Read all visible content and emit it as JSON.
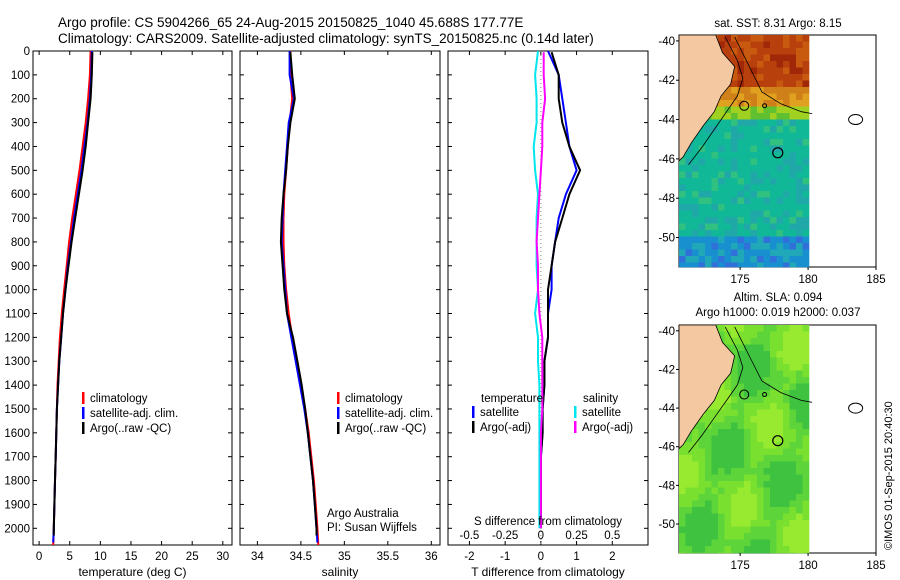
{
  "header": {
    "title_line1": "Argo profile: CS 5904266_65 24-Aug-2015 20150825_1040 45.688S 177.77E",
    "title_line2": "Climatology: CARS2009. Satellite-adjusted climatology: synTS_20150825.nc (0.14d later)"
  },
  "depth_axis": {
    "ticks": [
      0,
      100,
      200,
      300,
      400,
      500,
      600,
      700,
      800,
      900,
      1000,
      1100,
      1200,
      1300,
      1400,
      1500,
      1600,
      1700,
      1800,
      1900,
      2000
    ],
    "ylim": [
      0,
      2070
    ]
  },
  "chart_data": [
    {
      "type": "line",
      "id": "temperature",
      "xlabel": "temperature (deg C)",
      "xlim": [
        -1,
        31.5
      ],
      "xticks": [
        0,
        5,
        10,
        15,
        20,
        25,
        30
      ],
      "ylim": [
        0,
        2070
      ],
      "legend": {
        "placement": "lower-middle",
        "entries": [
          "climatology",
          "satellite-adj. clim.",
          "Argo(..raw -QC)"
        ]
      },
      "series": [
        {
          "name": "climatology",
          "color": "#ff0000",
          "points": [
            [
              8.4,
              0
            ],
            [
              8.3,
              100
            ],
            [
              8.0,
              200
            ],
            [
              7.6,
              300
            ],
            [
              7.1,
              400
            ],
            [
              6.6,
              500
            ],
            [
              6.0,
              600
            ],
            [
              5.4,
              700
            ],
            [
              4.9,
              800
            ],
            [
              4.5,
              900
            ],
            [
              4.1,
              1000
            ],
            [
              3.7,
              1100
            ],
            [
              3.4,
              1200
            ],
            [
              3.2,
              1300
            ],
            [
              3.0,
              1400
            ],
            [
              2.9,
              1500
            ],
            [
              2.8,
              1600
            ],
            [
              2.7,
              1700
            ],
            [
              2.6,
              1800
            ],
            [
              2.5,
              1900
            ],
            [
              2.4,
              2000
            ],
            [
              2.3,
              2070
            ]
          ]
        },
        {
          "name": "satellite-adj. clim.",
          "color": "#0000ff",
          "points": [
            [
              8.6,
              0
            ],
            [
              8.5,
              100
            ],
            [
              8.3,
              200
            ],
            [
              7.9,
              300
            ],
            [
              7.4,
              400
            ],
            [
              6.9,
              500
            ],
            [
              6.3,
              600
            ],
            [
              5.7,
              700
            ],
            [
              5.2,
              800
            ],
            [
              4.7,
              900
            ],
            [
              4.3,
              1000
            ],
            [
              3.9,
              1100
            ],
            [
              3.6,
              1200
            ],
            [
              3.3,
              1300
            ],
            [
              3.1,
              1400
            ],
            [
              2.9,
              1500
            ],
            [
              2.8,
              1600
            ],
            [
              2.7,
              1700
            ],
            [
              2.6,
              1800
            ],
            [
              2.5,
              1900
            ],
            [
              2.4,
              2000
            ],
            [
              2.3,
              2060
            ]
          ]
        },
        {
          "name": "Argo(..raw -QC)",
          "color": "#000000",
          "points": [
            [
              8.7,
              5
            ],
            [
              8.6,
              100
            ],
            [
              8.4,
              200
            ],
            [
              8.0,
              300
            ],
            [
              7.6,
              400
            ],
            [
              7.1,
              500
            ],
            [
              6.5,
              600
            ],
            [
              5.9,
              700
            ],
            [
              5.3,
              800
            ],
            [
              4.8,
              900
            ],
            [
              4.3,
              1000
            ],
            [
              3.9,
              1100
            ],
            [
              3.6,
              1200
            ],
            [
              3.3,
              1300
            ],
            [
              3.1,
              1400
            ],
            [
              2.9,
              1500
            ],
            [
              2.8,
              1600
            ],
            [
              2.7,
              1700
            ],
            [
              2.6,
              1800
            ],
            [
              2.5,
              1900
            ],
            [
              2.4,
              2000
            ],
            [
              2.4,
              2030
            ]
          ]
        }
      ]
    },
    {
      "type": "line",
      "id": "salinity",
      "xlabel": "salinity",
      "xlim": [
        33.8,
        36.1
      ],
      "xticks": [
        34,
        34.5,
        35,
        35.5,
        36
      ],
      "ylim": [
        0,
        2070
      ],
      "legend": {
        "placement": "lower-middle",
        "entries": [
          "climatology",
          "satellite-adj. clim.",
          "Argo(..raw -QC)"
        ]
      },
      "annotation": [
        "Argo Australia",
        "PI: Susan Wijffels"
      ],
      "series": [
        {
          "name": "climatology",
          "color": "#ff0000",
          "points": [
            [
              34.38,
              0
            ],
            [
              34.38,
              100
            ],
            [
              34.4,
              200
            ],
            [
              34.37,
              300
            ],
            [
              34.35,
              400
            ],
            [
              34.33,
              500
            ],
            [
              34.31,
              600
            ],
            [
              34.3,
              700
            ],
            [
              34.3,
              800
            ],
            [
              34.31,
              900
            ],
            [
              34.33,
              1000
            ],
            [
              34.36,
              1100
            ],
            [
              34.4,
              1200
            ],
            [
              34.45,
              1300
            ],
            [
              34.5,
              1400
            ],
            [
              34.55,
              1500
            ],
            [
              34.59,
              1600
            ],
            [
              34.62,
              1700
            ],
            [
              34.65,
              1800
            ],
            [
              34.67,
              1900
            ],
            [
              34.69,
              2000
            ],
            [
              34.7,
              2070
            ]
          ]
        },
        {
          "name": "satellite-adj. clim.",
          "color": "#0000ff",
          "points": [
            [
              34.37,
              0
            ],
            [
              34.37,
              100
            ],
            [
              34.42,
              200
            ],
            [
              34.36,
              300
            ],
            [
              34.34,
              400
            ],
            [
              34.32,
              500
            ],
            [
              34.3,
              600
            ],
            [
              34.29,
              700
            ],
            [
              34.28,
              800
            ],
            [
              34.3,
              900
            ],
            [
              34.32,
              1000
            ],
            [
              34.34,
              1100
            ],
            [
              34.39,
              1200
            ],
            [
              34.44,
              1300
            ],
            [
              34.49,
              1400
            ],
            [
              34.54,
              1500
            ],
            [
              34.58,
              1600
            ],
            [
              34.61,
              1700
            ],
            [
              34.64,
              1800
            ],
            [
              34.66,
              1900
            ],
            [
              34.68,
              2000
            ],
            [
              34.69,
              2060
            ]
          ]
        },
        {
          "name": "Argo(..raw -QC)",
          "color": "#000000",
          "points": [
            [
              34.38,
              5
            ],
            [
              34.4,
              100
            ],
            [
              34.43,
              200
            ],
            [
              34.38,
              300
            ],
            [
              34.35,
              400
            ],
            [
              34.33,
              500
            ],
            [
              34.3,
              600
            ],
            [
              34.28,
              700
            ],
            [
              34.27,
              800
            ],
            [
              34.29,
              900
            ],
            [
              34.31,
              1000
            ],
            [
              34.34,
              1100
            ],
            [
              34.41,
              1200
            ],
            [
              34.46,
              1300
            ],
            [
              34.51,
              1400
            ],
            [
              34.55,
              1500
            ],
            [
              34.58,
              1600
            ],
            [
              34.61,
              1700
            ],
            [
              34.64,
              1800
            ],
            [
              34.66,
              1900
            ],
            [
              34.68,
              2000
            ],
            [
              34.68,
              2030
            ]
          ]
        }
      ]
    },
    {
      "type": "line",
      "id": "difference",
      "xlabel": "T difference from climatology",
      "xlim": [
        -2.6,
        3.0
      ],
      "xticks": [
        -2,
        -1,
        0,
        1,
        2
      ],
      "xtick_labels": [
        "-2",
        "-1",
        "0",
        "1",
        "2"
      ],
      "secondary_xlabel": "S difference from climatology",
      "secondary_xticks": [
        -0.5,
        -0.25,
        0,
        0.25,
        0.5
      ],
      "secondary_xtick_labels": [
        "-0.5",
        "-0.25",
        "0",
        "0.25",
        "0.5"
      ],
      "secondary_xlim": [
        -0.65,
        0.75
      ],
      "ylim": [
        0,
        2070
      ],
      "legend": {
        "placement": "lower-middle",
        "temperature_heading": "temperature",
        "salinity_heading": "salinity",
        "entries": [
          "satellite",
          "Argo(-adj)",
          "satellite",
          "Argo(-adj)"
        ]
      },
      "series": [
        {
          "name": "satellite",
          "group": "temperature",
          "color": "#0000ff",
          "points": [
            [
              0.2,
              0
            ],
            [
              0.5,
              100
            ],
            [
              0.6,
              200
            ],
            [
              0.7,
              300
            ],
            [
              0.8,
              400
            ],
            [
              1.0,
              500
            ],
            [
              0.7,
              600
            ],
            [
              0.5,
              700
            ],
            [
              0.4,
              800
            ],
            [
              0.3,
              900
            ],
            [
              0.3,
              1000
            ],
            [
              0.2,
              1100
            ],
            [
              0.2,
              1200
            ],
            [
              0.1,
              1300
            ],
            [
              0.1,
              1400
            ],
            [
              0.05,
              1500
            ],
            [
              0.05,
              1600
            ],
            [
              0.0,
              1700
            ],
            [
              0.0,
              1800
            ],
            [
              0.0,
              1900
            ],
            [
              0.0,
              2000
            ]
          ]
        },
        {
          "name": "Argo(-adj)",
          "group": "temperature",
          "color": "#000000",
          "points": [
            [
              0.3,
              5
            ],
            [
              0.5,
              100
            ],
            [
              0.5,
              200
            ],
            [
              0.6,
              300
            ],
            [
              0.8,
              400
            ],
            [
              1.1,
              500
            ],
            [
              0.8,
              600
            ],
            [
              0.6,
              700
            ],
            [
              0.4,
              800
            ],
            [
              0.3,
              900
            ],
            [
              0.2,
              1000
            ],
            [
              0.2,
              1100
            ],
            [
              0.2,
              1200
            ],
            [
              0.1,
              1300
            ],
            [
              0.1,
              1400
            ],
            [
              0.05,
              1500
            ],
            [
              0.05,
              1600
            ],
            [
              0.0,
              1700
            ],
            [
              0.0,
              1800
            ],
            [
              0.0,
              1900
            ],
            [
              0.0,
              2000
            ]
          ]
        },
        {
          "name": "satellite",
          "group": "salinity",
          "color": "#00e5ee",
          "points": [
            [
              -0.02,
              0
            ],
            [
              -0.04,
              100
            ],
            [
              -0.03,
              200
            ],
            [
              -0.03,
              300
            ],
            [
              -0.05,
              400
            ],
            [
              -0.04,
              500
            ],
            [
              -0.02,
              600
            ],
            [
              -0.03,
              700
            ],
            [
              -0.03,
              800
            ],
            [
              -0.03,
              900
            ],
            [
              -0.02,
              1000
            ],
            [
              -0.04,
              1100
            ],
            [
              -0.02,
              1200
            ],
            [
              -0.02,
              1300
            ],
            [
              -0.01,
              1400
            ],
            [
              -0.01,
              1500
            ],
            [
              -0.01,
              1600
            ],
            [
              -0.01,
              1700
            ],
            [
              -0.01,
              1800
            ],
            [
              -0.01,
              1900
            ],
            [
              -0.01,
              2000
            ]
          ]
        },
        {
          "name": "Argo(-adj)",
          "group": "salinity",
          "color": "#ff00ff",
          "points": [
            [
              0.02,
              5
            ],
            [
              0.02,
              100
            ],
            [
              0.03,
              200
            ],
            [
              0.01,
              300
            ],
            [
              0.01,
              400
            ],
            [
              0.0,
              500
            ],
            [
              -0.01,
              600
            ],
            [
              -0.02,
              700
            ],
            [
              -0.03,
              800
            ],
            [
              -0.02,
              900
            ],
            [
              -0.02,
              1000
            ],
            [
              -0.01,
              1100
            ],
            [
              0.01,
              1200
            ],
            [
              0.01,
              1300
            ],
            [
              0.01,
              1400
            ],
            [
              0.01,
              1500
            ],
            [
              0.0,
              1600
            ],
            [
              0.0,
              1700
            ],
            [
              0.0,
              1800
            ],
            [
              0.0,
              1900
            ],
            [
              0.0,
              2000
            ]
          ]
        }
      ]
    },
    {
      "type": "heatmap",
      "id": "sst_map",
      "title": "sat. SST: 8.31  Argo: 8.15",
      "xlim": [
        170.5,
        185
      ],
      "xticks": [
        175,
        180,
        185
      ],
      "ylim": [
        -51.5,
        -39.7
      ],
      "yticks": [
        -40,
        -42,
        -44,
        -46,
        -48,
        -50
      ],
      "argo_position": [
        177.77,
        -45.688
      ]
    },
    {
      "type": "heatmap",
      "id": "sla_map",
      "title_line1": "Altim. SLA: 0.094",
      "title_line2": "Argo h1000: 0.019 h2000: 0.037",
      "xlim": [
        170.5,
        185
      ],
      "xticks": [
        175,
        180,
        185
      ],
      "ylim": [
        -51.5,
        -39.7
      ],
      "yticks": [
        -40,
        -42,
        -44,
        -46,
        -48,
        -50
      ],
      "argo_position": [
        177.77,
        -45.688
      ]
    }
  ],
  "footer": {
    "credit": "©IMOS 01-Sep-2015 20:40:30"
  }
}
